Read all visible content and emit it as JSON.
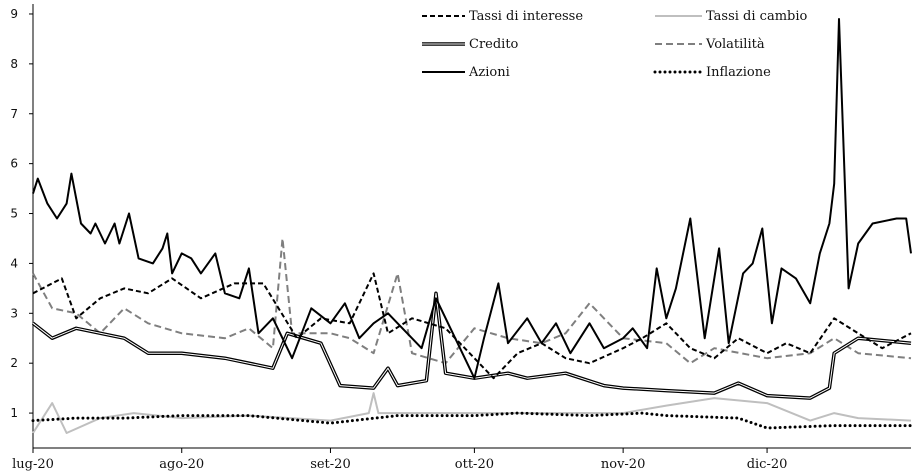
{
  "chart_data": {
    "type": "line",
    "title": "",
    "xlabel": "",
    "ylabel": "",
    "x_range": [
      "2020-07-01",
      "2020-12-31"
    ],
    "ylim": [
      0.3,
      9.2
    ],
    "yticks": [
      1,
      2,
      3,
      4,
      5,
      6,
      7,
      8,
      9
    ],
    "xticks": [
      {
        "date": "2020-07-01",
        "label": "lug-20"
      },
      {
        "date": "2020-08-01",
        "label": "ago-20"
      },
      {
        "date": "2020-09-01",
        "label": "set-20"
      },
      {
        "date": "2020-10-01",
        "label": "ott-20"
      },
      {
        "date": "2020-11-01",
        "label": "nov-20"
      },
      {
        "date": "2020-12-01",
        "label": "dic-20"
      }
    ],
    "grid": false,
    "legend_position": "top-right",
    "series": [
      {
        "name": "Tassi di interesse",
        "style": "dashed",
        "color": "#000000",
        "points": [
          [
            "2020-07-01",
            3.4
          ],
          [
            "2020-07-07",
            3.7
          ],
          [
            "2020-07-10",
            2.9
          ],
          [
            "2020-07-15",
            3.3
          ],
          [
            "2020-07-20",
            3.5
          ],
          [
            "2020-07-25",
            3.4
          ],
          [
            "2020-07-30",
            3.7
          ],
          [
            "2020-08-05",
            3.3
          ],
          [
            "2020-08-12",
            3.6
          ],
          [
            "2020-08-18",
            3.6
          ],
          [
            "2020-08-25",
            2.5
          ],
          [
            "2020-08-30",
            2.9
          ],
          [
            "2020-09-05",
            2.8
          ],
          [
            "2020-09-10",
            3.8
          ],
          [
            "2020-09-13",
            2.6
          ],
          [
            "2020-09-18",
            2.9
          ],
          [
            "2020-09-25",
            2.7
          ],
          [
            "2020-10-01",
            2.1
          ],
          [
            "2020-10-05",
            1.7
          ],
          [
            "2020-10-10",
            2.2
          ],
          [
            "2020-10-15",
            2.4
          ],
          [
            "2020-10-20",
            2.1
          ],
          [
            "2020-10-25",
            2.0
          ],
          [
            "2020-11-01",
            2.3
          ],
          [
            "2020-11-05",
            2.5
          ],
          [
            "2020-11-10",
            2.8
          ],
          [
            "2020-11-15",
            2.3
          ],
          [
            "2020-11-20",
            2.1
          ],
          [
            "2020-11-25",
            2.5
          ],
          [
            "2020-12-01",
            2.2
          ],
          [
            "2020-12-05",
            2.4
          ],
          [
            "2020-12-10",
            2.2
          ],
          [
            "2020-12-15",
            2.9
          ],
          [
            "2020-12-20",
            2.6
          ],
          [
            "2020-12-25",
            2.3
          ],
          [
            "2020-12-31",
            2.6
          ]
        ]
      },
      {
        "name": "Tassi di cambio",
        "style": "solid",
        "color": "#bfbfbf",
        "points": [
          [
            "2020-07-01",
            0.6
          ],
          [
            "2020-07-05",
            1.2
          ],
          [
            "2020-07-08",
            0.6
          ],
          [
            "2020-07-15",
            0.9
          ],
          [
            "2020-07-22",
            1.0
          ],
          [
            "2020-08-01",
            0.9
          ],
          [
            "2020-08-15",
            0.95
          ],
          [
            "2020-09-01",
            0.85
          ],
          [
            "2020-09-09",
            1.0
          ],
          [
            "2020-09-10",
            1.4
          ],
          [
            "2020-09-11",
            1.0
          ],
          [
            "2020-09-20",
            1.0
          ],
          [
            "2020-10-01",
            1.0
          ],
          [
            "2020-10-15",
            1.0
          ],
          [
            "2020-10-25",
            1.0
          ],
          [
            "2020-11-01",
            1.0
          ],
          [
            "2020-11-10",
            1.15
          ],
          [
            "2020-11-20",
            1.3
          ],
          [
            "2020-12-01",
            1.2
          ],
          [
            "2020-12-10",
            0.85
          ],
          [
            "2020-12-15",
            1.0
          ],
          [
            "2020-12-20",
            0.9
          ],
          [
            "2020-12-31",
            0.85
          ]
        ]
      },
      {
        "name": "Credito",
        "style": "double",
        "color": "#000000",
        "points": [
          [
            "2020-07-01",
            2.8
          ],
          [
            "2020-07-05",
            2.5
          ],
          [
            "2020-07-10",
            2.7
          ],
          [
            "2020-07-20",
            2.5
          ],
          [
            "2020-07-25",
            2.2
          ],
          [
            "2020-08-01",
            2.2
          ],
          [
            "2020-08-10",
            2.1
          ],
          [
            "2020-08-20",
            1.9
          ],
          [
            "2020-08-23",
            2.6
          ],
          [
            "2020-08-30",
            2.4
          ],
          [
            "2020-09-03",
            1.55
          ],
          [
            "2020-09-10",
            1.5
          ],
          [
            "2020-09-13",
            1.9
          ],
          [
            "2020-09-15",
            1.55
          ],
          [
            "2020-09-21",
            1.65
          ],
          [
            "2020-09-23",
            3.4
          ],
          [
            "2020-09-25",
            1.8
          ],
          [
            "2020-10-01",
            1.7
          ],
          [
            "2020-10-08",
            1.8
          ],
          [
            "2020-10-12",
            1.7
          ],
          [
            "2020-10-20",
            1.8
          ],
          [
            "2020-10-28",
            1.55
          ],
          [
            "2020-11-01",
            1.5
          ],
          [
            "2020-11-10",
            1.45
          ],
          [
            "2020-11-20",
            1.4
          ],
          [
            "2020-11-25",
            1.6
          ],
          [
            "2020-12-01",
            1.35
          ],
          [
            "2020-12-10",
            1.3
          ],
          [
            "2020-12-14",
            1.5
          ],
          [
            "2020-12-15",
            2.2
          ],
          [
            "2020-12-20",
            2.5
          ],
          [
            "2020-12-31",
            2.4
          ]
        ]
      },
      {
        "name": "Volatilità",
        "style": "dashed",
        "color": "#7f7f7f",
        "points": [
          [
            "2020-07-01",
            3.8
          ],
          [
            "2020-07-05",
            3.1
          ],
          [
            "2020-07-10",
            3.0
          ],
          [
            "2020-07-15",
            2.6
          ],
          [
            "2020-07-20",
            3.1
          ],
          [
            "2020-07-25",
            2.8
          ],
          [
            "2020-08-01",
            2.6
          ],
          [
            "2020-08-10",
            2.5
          ],
          [
            "2020-08-15",
            2.7
          ],
          [
            "2020-08-20",
            2.3
          ],
          [
            "2020-08-22",
            4.5
          ],
          [
            "2020-08-24",
            2.6
          ],
          [
            "2020-09-01",
            2.6
          ],
          [
            "2020-09-05",
            2.5
          ],
          [
            "2020-09-10",
            2.2
          ],
          [
            "2020-09-15",
            3.8
          ],
          [
            "2020-09-18",
            2.2
          ],
          [
            "2020-09-25",
            2.0
          ],
          [
            "2020-10-01",
            2.7
          ],
          [
            "2020-10-08",
            2.5
          ],
          [
            "2020-10-15",
            2.4
          ],
          [
            "2020-10-20",
            2.6
          ],
          [
            "2020-10-25",
            3.2
          ],
          [
            "2020-11-01",
            2.5
          ],
          [
            "2020-11-10",
            2.4
          ],
          [
            "2020-11-15",
            2.0
          ],
          [
            "2020-11-20",
            2.3
          ],
          [
            "2020-12-01",
            2.1
          ],
          [
            "2020-12-10",
            2.2
          ],
          [
            "2020-12-15",
            2.5
          ],
          [
            "2020-12-20",
            2.2
          ],
          [
            "2020-12-31",
            2.1
          ]
        ]
      },
      {
        "name": "Azioni",
        "style": "solid",
        "color": "#000000",
        "points": [
          [
            "2020-07-01",
            5.4
          ],
          [
            "2020-07-02",
            5.7
          ],
          [
            "2020-07-04",
            5.2
          ],
          [
            "2020-07-06",
            4.9
          ],
          [
            "2020-07-08",
            5.2
          ],
          [
            "2020-07-09",
            5.8
          ],
          [
            "2020-07-11",
            4.8
          ],
          [
            "2020-07-13",
            4.6
          ],
          [
            "2020-07-14",
            4.8
          ],
          [
            "2020-07-16",
            4.4
          ],
          [
            "2020-07-18",
            4.8
          ],
          [
            "2020-07-19",
            4.4
          ],
          [
            "2020-07-21",
            5.0
          ],
          [
            "2020-07-23",
            4.1
          ],
          [
            "2020-07-26",
            4.0
          ],
          [
            "2020-07-28",
            4.3
          ],
          [
            "2020-07-29",
            4.6
          ],
          [
            "2020-07-30",
            3.8
          ],
          [
            "2020-08-01",
            4.2
          ],
          [
            "2020-08-03",
            4.1
          ],
          [
            "2020-08-05",
            3.8
          ],
          [
            "2020-08-08",
            4.2
          ],
          [
            "2020-08-10",
            3.4
          ],
          [
            "2020-08-13",
            3.3
          ],
          [
            "2020-08-15",
            3.9
          ],
          [
            "2020-08-17",
            2.6
          ],
          [
            "2020-08-20",
            2.9
          ],
          [
            "2020-08-24",
            2.1
          ],
          [
            "2020-08-28",
            3.1
          ],
          [
            "2020-09-01",
            2.8
          ],
          [
            "2020-09-04",
            3.2
          ],
          [
            "2020-09-07",
            2.5
          ],
          [
            "2020-09-10",
            2.8
          ],
          [
            "2020-09-13",
            3.0
          ],
          [
            "2020-09-15",
            2.8
          ],
          [
            "2020-09-20",
            2.3
          ],
          [
            "2020-09-23",
            3.3
          ],
          [
            "2020-09-27",
            2.5
          ],
          [
            "2020-10-01",
            1.7
          ],
          [
            "2020-10-03",
            2.5
          ],
          [
            "2020-10-06",
            3.6
          ],
          [
            "2020-10-08",
            2.4
          ],
          [
            "2020-10-12",
            2.9
          ],
          [
            "2020-10-15",
            2.4
          ],
          [
            "2020-10-18",
            2.8
          ],
          [
            "2020-10-21",
            2.2
          ],
          [
            "2020-10-25",
            2.8
          ],
          [
            "2020-10-28",
            2.3
          ],
          [
            "2020-11-01",
            2.5
          ],
          [
            "2020-11-03",
            2.7
          ],
          [
            "2020-11-06",
            2.3
          ],
          [
            "2020-11-08",
            3.9
          ],
          [
            "2020-11-10",
            2.9
          ],
          [
            "2020-11-12",
            3.5
          ],
          [
            "2020-11-15",
            4.9
          ],
          [
            "2020-11-18",
            2.5
          ],
          [
            "2020-11-21",
            4.3
          ],
          [
            "2020-11-23",
            2.4
          ],
          [
            "2020-11-26",
            3.8
          ],
          [
            "2020-11-28",
            4.0
          ],
          [
            "2020-11-30",
            4.7
          ],
          [
            "2020-12-02",
            2.8
          ],
          [
            "2020-12-04",
            3.9
          ],
          [
            "2020-12-07",
            3.7
          ],
          [
            "2020-12-10",
            3.2
          ],
          [
            "2020-12-12",
            4.2
          ],
          [
            "2020-12-14",
            4.8
          ],
          [
            "2020-12-15",
            5.6
          ],
          [
            "2020-12-16",
            8.9
          ],
          [
            "2020-12-18",
            3.5
          ],
          [
            "2020-12-20",
            4.4
          ],
          [
            "2020-12-23",
            4.8
          ],
          [
            "2020-12-28",
            4.9
          ],
          [
            "2020-12-30",
            4.9
          ],
          [
            "2020-12-31",
            4.2
          ]
        ]
      },
      {
        "name": "Inflazione",
        "style": "dotted",
        "color": "#000000",
        "points": [
          [
            "2020-07-01",
            0.85
          ],
          [
            "2020-07-10",
            0.9
          ],
          [
            "2020-07-20",
            0.9
          ],
          [
            "2020-08-01",
            0.95
          ],
          [
            "2020-08-15",
            0.95
          ],
          [
            "2020-09-01",
            0.8
          ],
          [
            "2020-09-15",
            0.95
          ],
          [
            "2020-10-01",
            0.95
          ],
          [
            "2020-10-10",
            1.0
          ],
          [
            "2020-10-25",
            0.95
          ],
          [
            "2020-11-05",
            1.0
          ],
          [
            "2020-11-10",
            0.95
          ],
          [
            "2020-11-25",
            0.9
          ],
          [
            "2020-12-01",
            0.7
          ],
          [
            "2020-12-15",
            0.75
          ],
          [
            "2020-12-31",
            0.75
          ]
        ]
      }
    ]
  }
}
